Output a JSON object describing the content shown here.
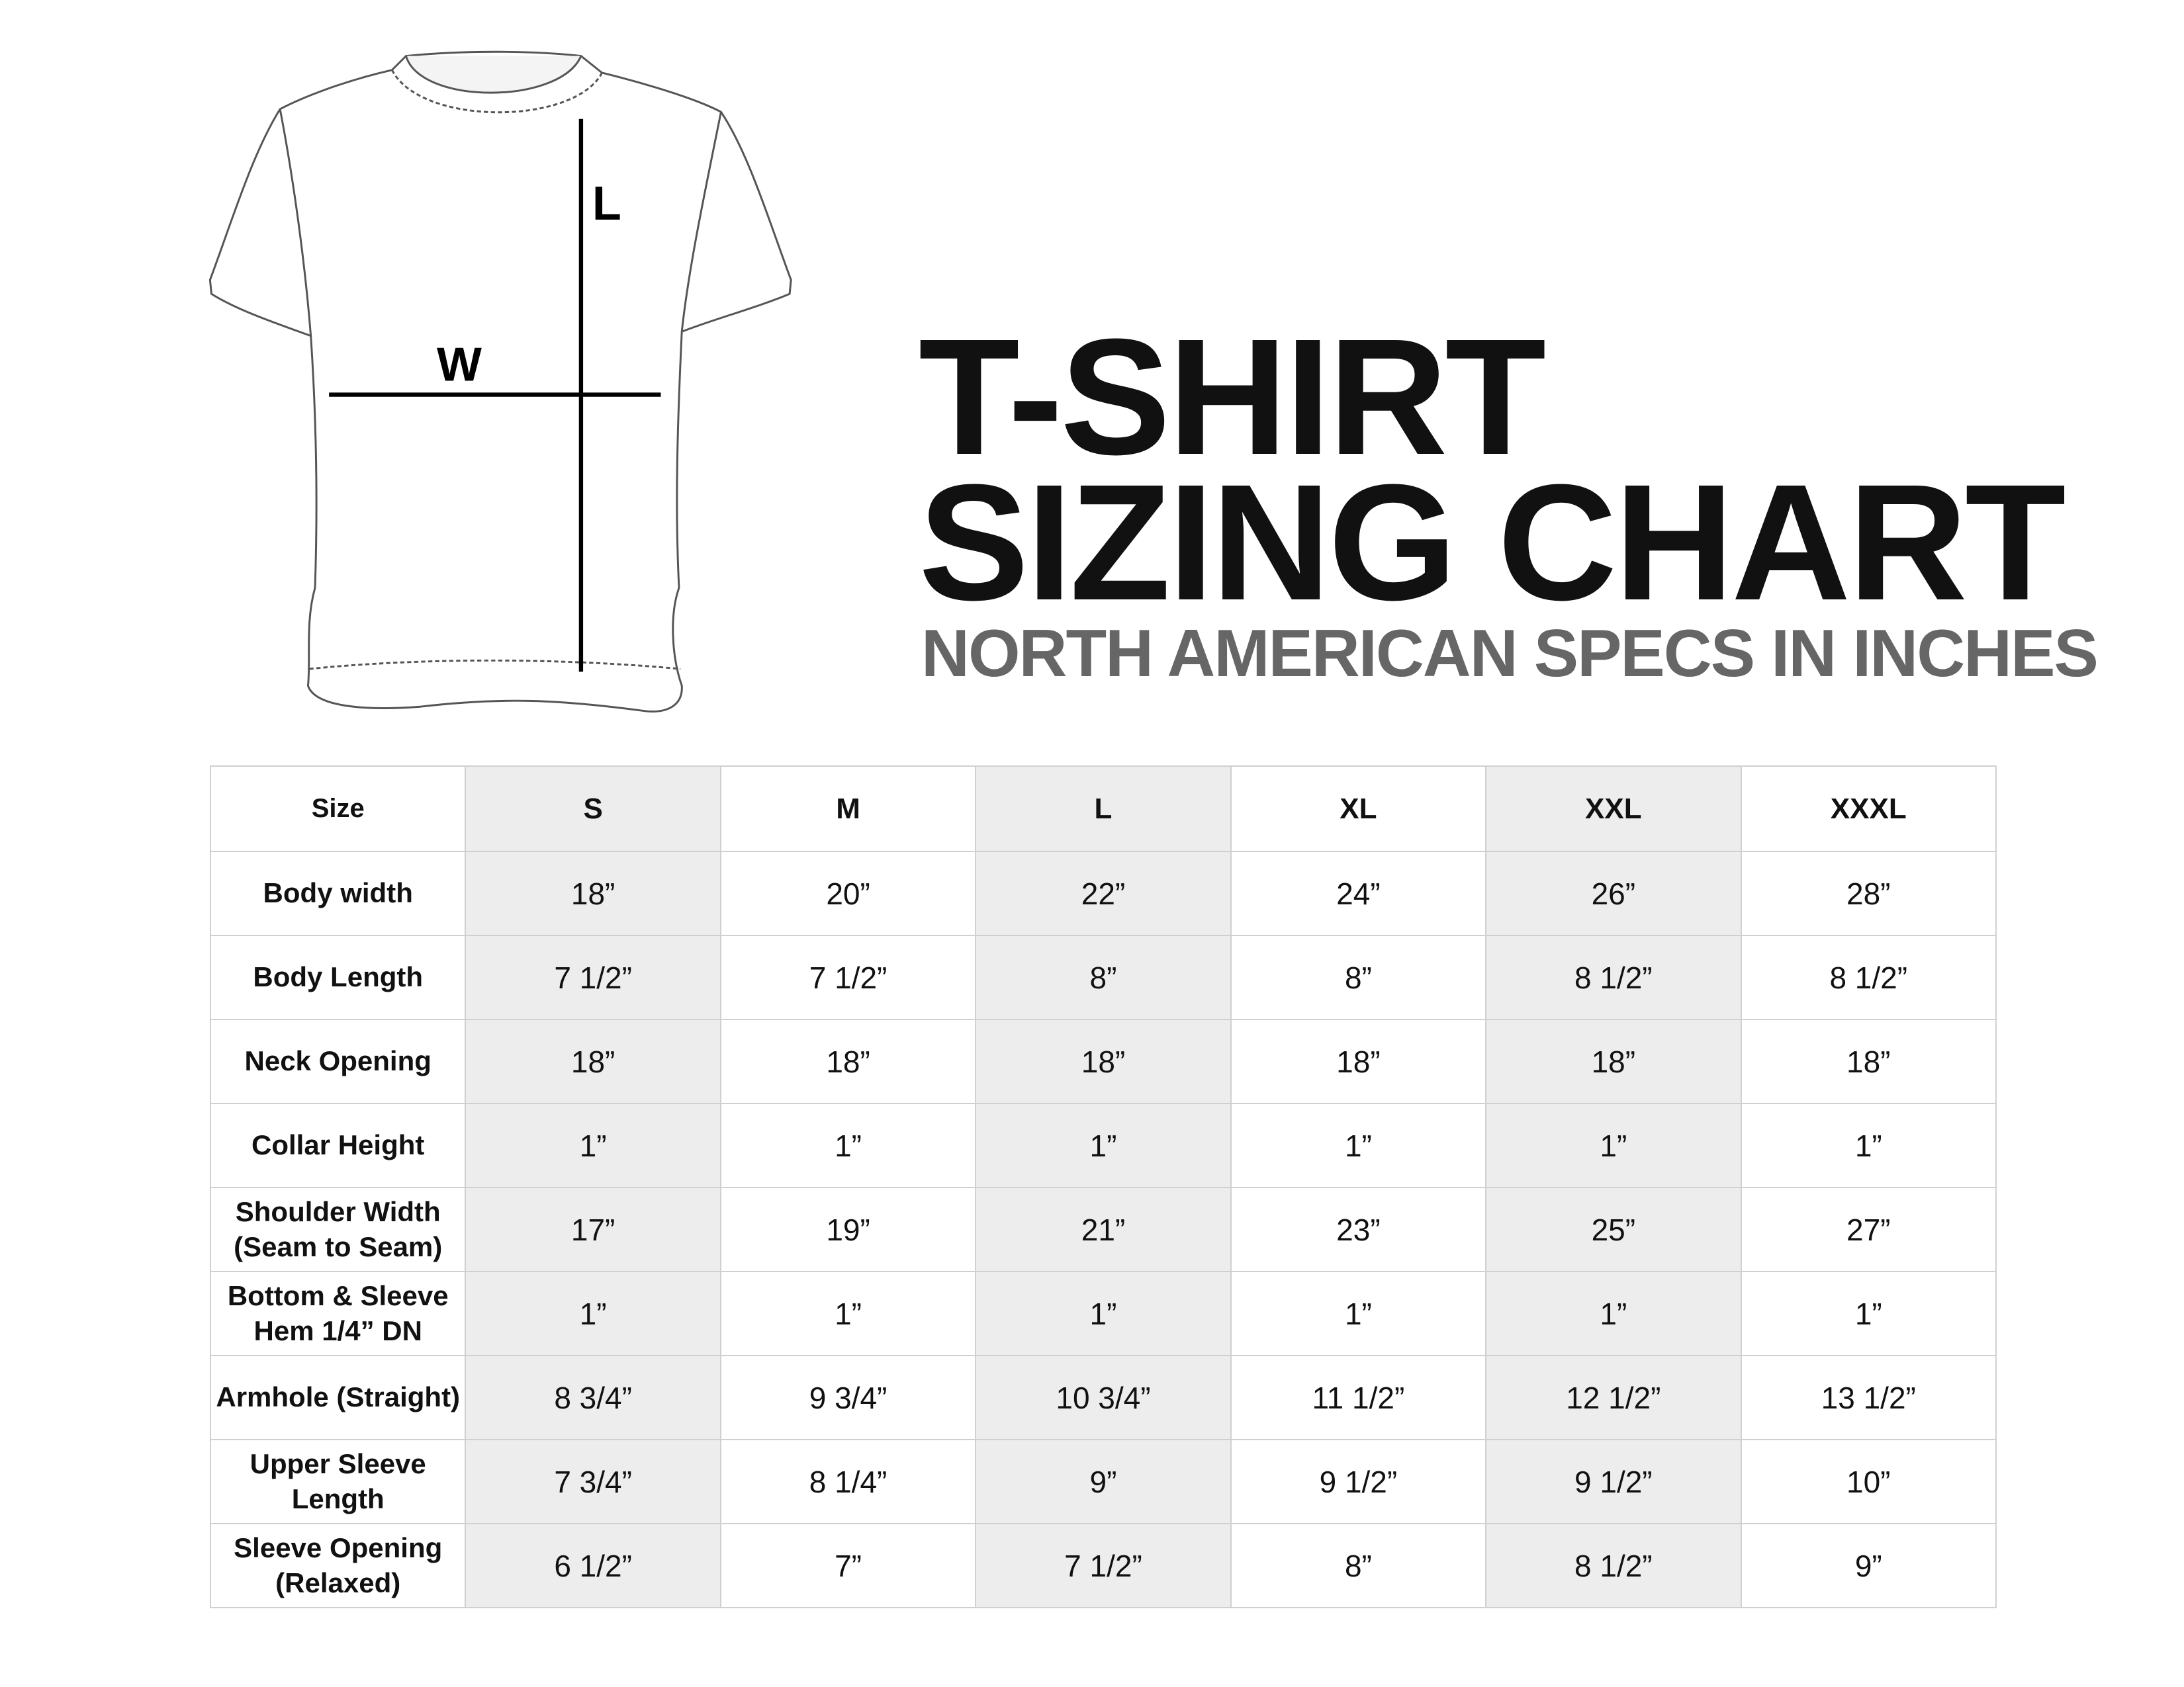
{
  "illustration": {
    "width_label": "W",
    "length_label": "L"
  },
  "title": {
    "line1": "T-SHIRT",
    "line2": "SIZING CHART",
    "subtitle": "NORTH AMERICAN SPECS IN INCHES"
  },
  "table": {
    "header_label": "Size",
    "sizes": [
      "S",
      "M",
      "L",
      "XL",
      "XXL",
      "XXXL"
    ],
    "shaded_color": "#ededed",
    "rows": [
      {
        "label": "Body width",
        "values": [
          "18”",
          "20”",
          "22”",
          "24”",
          "26”",
          "28”"
        ]
      },
      {
        "label": "Body Length",
        "values": [
          "7 1/2”",
          "7 1/2”",
          "8”",
          "8”",
          "8 1/2”",
          "8 1/2”"
        ]
      },
      {
        "label": "Neck Opening",
        "values": [
          "18”",
          "18”",
          "18”",
          "18”",
          "18”",
          "18”"
        ]
      },
      {
        "label": "Collar Height",
        "values": [
          "1”",
          "1”",
          "1”",
          "1”",
          "1”",
          "1”"
        ]
      },
      {
        "label": "Shoulder Width (Seam to Seam)",
        "values": [
          "17”",
          "19”",
          "21”",
          "23”",
          "25”",
          "27”"
        ]
      },
      {
        "label": "Bottom & Sleeve Hem 1/4” DN",
        "values": [
          "1”",
          "1”",
          "1”",
          "1”",
          "1”",
          "1”"
        ]
      },
      {
        "label": "Armhole (Straight)",
        "values": [
          "8 3/4”",
          "9 3/4”",
          "10 3/4”",
          "11 1/2”",
          "12 1/2”",
          "13 1/2”"
        ]
      },
      {
        "label": "Upper Sleeve Length",
        "values": [
          "7 3/4”",
          "8 1/4”",
          "9”",
          "9 1/2”",
          "9 1/2”",
          "10”"
        ]
      },
      {
        "label": "Sleeve Opening (Relaxed)",
        "values": [
          "6 1/2”",
          "7”",
          "7 1/2”",
          "8”",
          "8 1/2”",
          "9”"
        ]
      }
    ]
  }
}
